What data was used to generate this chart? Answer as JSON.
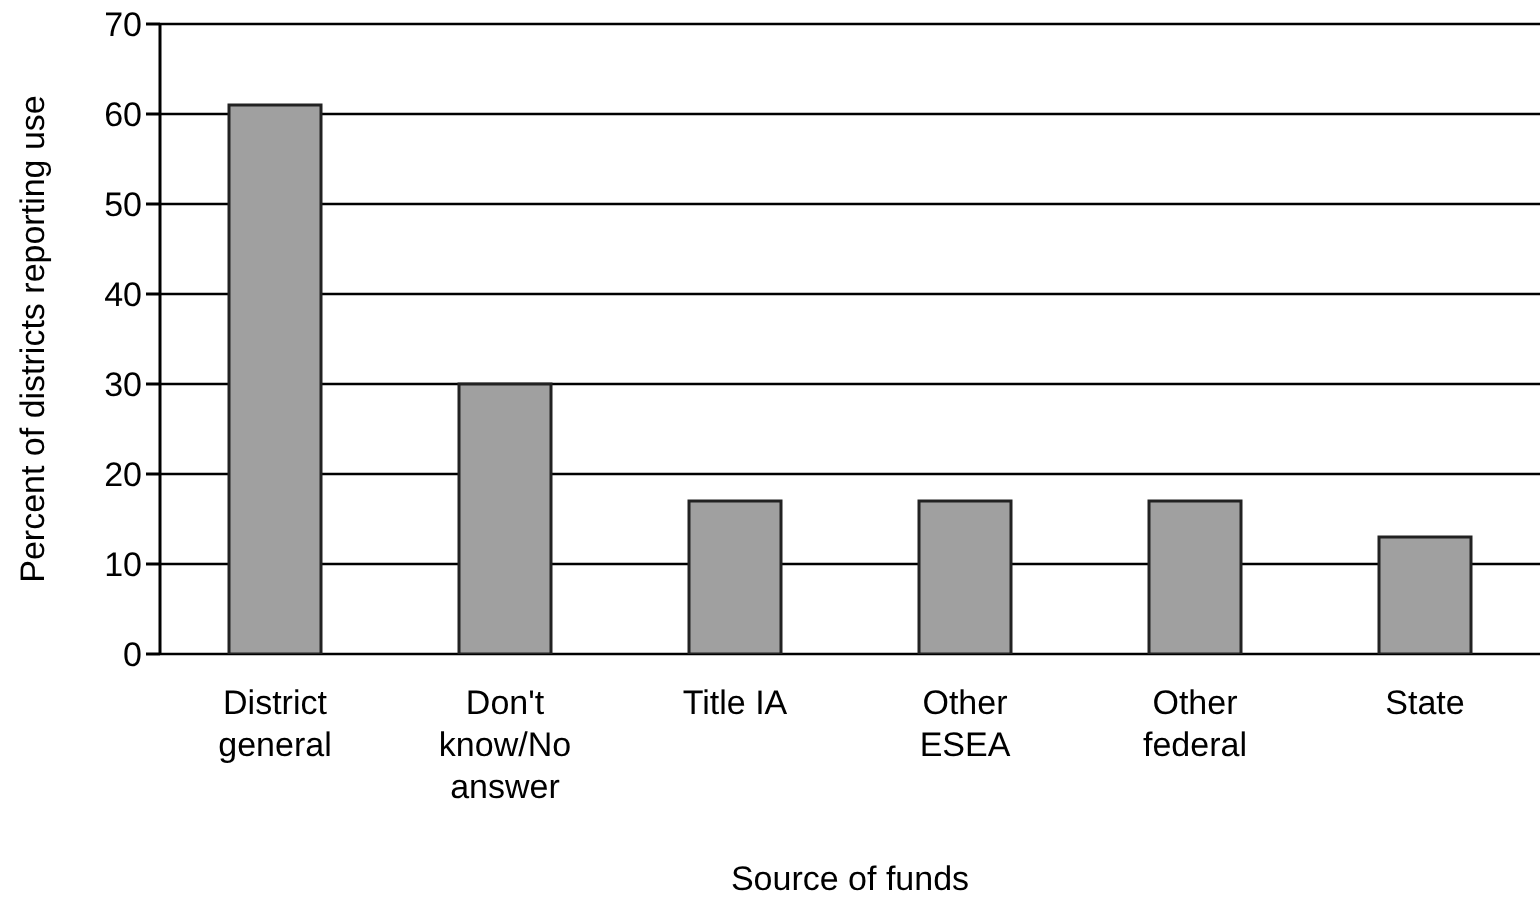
{
  "chart_data": {
    "type": "bar",
    "xlabel": "Source of funds",
    "ylabel": "Percent of districts reporting use",
    "categories": [
      "District\ngeneral",
      "Don't\nknow/No\nanswer",
      "Title IA",
      "Other\nESEA",
      "Other\nfederal",
      "State"
    ],
    "values": [
      61,
      30,
      17,
      17,
      17,
      13
    ],
    "color": "#a0a0a0",
    "ylim": [
      0,
      70
    ],
    "yticks": [
      0,
      10,
      20,
      30,
      40,
      50,
      60,
      70
    ],
    "grid": "y",
    "legend": false
  }
}
